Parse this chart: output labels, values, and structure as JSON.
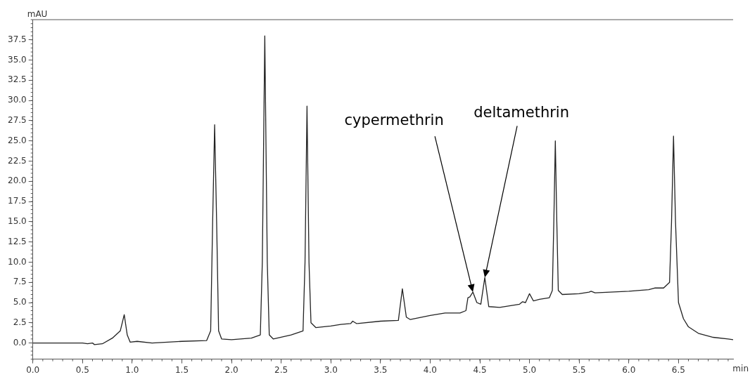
{
  "chart_data": {
    "type": "line",
    "xlabel": "min",
    "ylabel": "mAU",
    "x": [
      0,
      0.5,
      0.55,
      0.6,
      0.62,
      0.7,
      0.8,
      0.88,
      0.92,
      0.95,
      0.98,
      1.05,
      1.2,
      1.5,
      1.75,
      1.79,
      1.81,
      1.83,
      1.85,
      1.87,
      1.9,
      2.0,
      2.2,
      2.29,
      2.31,
      2.335,
      2.36,
      2.38,
      2.42,
      2.6,
      2.72,
      2.74,
      2.76,
      2.78,
      2.8,
      2.85,
      3.0,
      3.1,
      3.2,
      3.22,
      3.26,
      3.5,
      3.68,
      3.72,
      3.76,
      3.8,
      4.0,
      4.15,
      4.3,
      4.36,
      4.38,
      4.4,
      4.43,
      4.47,
      4.51,
      4.55,
      4.59,
      4.7,
      4.9,
      4.93,
      4.96,
      5.0,
      5.04,
      5.1,
      5.2,
      5.23,
      5.245,
      5.26,
      5.275,
      5.29,
      5.33,
      5.5,
      5.6,
      5.62,
      5.66,
      6.0,
      6.2,
      6.26,
      6.35,
      6.41,
      6.43,
      6.45,
      6.47,
      6.5,
      6.55,
      6.6,
      6.7,
      6.85,
      7.0,
      7.05
    ],
    "series": [
      {
        "color": "#222222",
        "values": [
          0,
          0,
          -0.1,
          0,
          -0.2,
          -0.1,
          0.6,
          1.5,
          3.5,
          1.0,
          0.1,
          0.2,
          0,
          0.2,
          0.3,
          1.5,
          15,
          27.0,
          15,
          1.5,
          0.5,
          0.4,
          0.6,
          1.0,
          10,
          38.0,
          10,
          1.0,
          0.5,
          1.0,
          1.5,
          10,
          29.3,
          10,
          2.5,
          1.9,
          2.1,
          2.3,
          2.4,
          2.7,
          2.4,
          2.7,
          2.8,
          6.7,
          3.2,
          2.9,
          3.4,
          3.7,
          3.7,
          4.0,
          5.6,
          5.7,
          6.3,
          5.0,
          4.8,
          8.1,
          4.5,
          4.4,
          4.8,
          5.1,
          5.0,
          6.1,
          5.2,
          5.4,
          5.6,
          6.5,
          15,
          25.0,
          15,
          6.5,
          6.0,
          6.1,
          6.3,
          6.4,
          6.2,
          6.4,
          6.6,
          6.8,
          6.8,
          7.5,
          15,
          25.6,
          15,
          5.0,
          3.0,
          2.0,
          1.2,
          0.7,
          0.5,
          0.4
        ]
      }
    ],
    "xlim": [
      0,
      7.05
    ],
    "xticks": [
      {
        "value": 0,
        "label": "0.0"
      },
      0.5,
      {
        "value": 1,
        "label": "1.0"
      },
      1.5,
      {
        "value": 2,
        "label": "2.0"
      },
      2.5,
      {
        "value": 3,
        "label": "3.0"
      },
      3.5,
      {
        "value": 4,
        "label": "4.0"
      },
      4.5,
      {
        "value": 5,
        "label": "5.0"
      },
      5.5,
      {
        "value": 6,
        "label": "6.0"
      },
      6.5
    ],
    "ylim": [
      -2,
      40
    ],
    "yticks": [
      {
        "value": 0,
        "label": "0.0"
      },
      2.5,
      {
        "value": 5,
        "label": "5.0"
      },
      7.5,
      {
        "value": 10,
        "label": "10.0"
      },
      12.5,
      {
        "value": 15,
        "label": "15.0"
      },
      17.5,
      {
        "value": 20,
        "label": "20.0"
      },
      22.5,
      {
        "value": 25,
        "label": "25.0"
      },
      27.5,
      {
        "value": 30,
        "label": "30.0"
      },
      32.5,
      {
        "value": 35,
        "label": "35.0"
      },
      37.5
    ],
    "annotations": [
      {
        "text": "cypermethrin",
        "x": 4.43,
        "y": 6.3
      },
      {
        "text": "deltamethrin",
        "x": 4.55,
        "y": 8.1
      }
    ],
    "grid": false,
    "legend": false,
    "marker": "none",
    "line_style": "solid"
  }
}
